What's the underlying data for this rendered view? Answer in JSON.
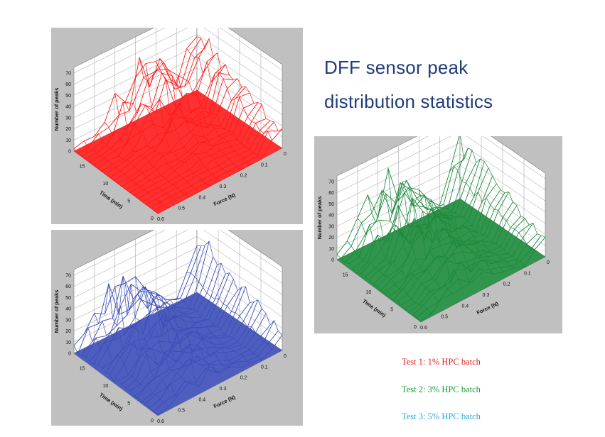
{
  "title": {
    "line1": "DFF sensor  peak",
    "line2": "distribution statistics",
    "color": "#1f3d7a"
  },
  "legend": [
    {
      "text": "Test 1: 1% HPC batch",
      "color": "#e32323"
    },
    {
      "text": "Test 2: 3% HPC batch",
      "color": "#1e9a3e"
    },
    {
      "text": "Test 3: 5% HPC batch",
      "color": "#2aa7d8"
    }
  ],
  "chart_data": [
    {
      "type": "surface",
      "series": [
        {
          "color": "#ff1a1a"
        }
      ],
      "axes": {
        "z": {
          "label": "Number of peaks",
          "ticks": [
            "0",
            "10",
            "20",
            "30",
            "40",
            "50",
            "60",
            "70"
          ],
          "range": [
            0,
            75
          ]
        },
        "time": {
          "label": "Time (min)",
          "ticks": [
            "15",
            "10",
            "5",
            "0"
          ],
          "range": [
            0,
            18
          ]
        },
        "force": {
          "label": "Force (N)",
          "ticks": [
            "0.6",
            "0.5",
            "0.4",
            "0.3",
            "0.2",
            "0.1",
            "0"
          ],
          "range": [
            0,
            0.6
          ]
        }
      },
      "description_values": {
        "force_bins": [
          0.6,
          0.55,
          0.5,
          0.45,
          0.4,
          0.35,
          0.3,
          0.25,
          0.2,
          0.15,
          0.1,
          0.05,
          0.0
        ],
        "peak_profile_max": [
          2,
          4,
          10,
          18,
          30,
          45,
          58,
          60,
          50,
          40,
          30,
          55,
          60
        ],
        "time_extent": 18
      }
    },
    {
      "type": "surface",
      "series": [
        {
          "color": "#3b4db8"
        }
      ],
      "axes": {
        "z": {
          "label": "Number of peaks",
          "ticks": [
            "0",
            "10",
            "20",
            "30",
            "40",
            "50",
            "60",
            "70"
          ],
          "range": [
            0,
            75
          ]
        },
        "time": {
          "label": "Time (min)",
          "ticks": [
            "15",
            "10",
            "5",
            "0"
          ],
          "range": [
            0,
            18
          ]
        },
        "force": {
          "label": "Force (N)",
          "ticks": [
            "0.6",
            "0.5",
            "0.4",
            "0.3",
            "0.2",
            "0.1",
            "0"
          ],
          "range": [
            0,
            0.6
          ]
        }
      },
      "description_values": {
        "force_bins": [
          0.6,
          0.55,
          0.5,
          0.45,
          0.4,
          0.35,
          0.3,
          0.25,
          0.2,
          0.15,
          0.1,
          0.05,
          0.0
        ],
        "peak_profile_max": [
          6,
          20,
          38,
          48,
          55,
          50,
          40,
          30,
          18,
          10,
          6,
          30,
          62
        ],
        "time_extent": 18
      }
    },
    {
      "type": "surface",
      "series": [
        {
          "color": "#1b8a3a"
        }
      ],
      "axes": {
        "z": {
          "label": "Number of peaks",
          "ticks": [
            "0",
            "10",
            "20",
            "30",
            "40",
            "50",
            "60",
            "70"
          ],
          "range": [
            0,
            75
          ]
        },
        "time": {
          "label": "Time (min)",
          "ticks": [
            "15",
            "10",
            "5",
            "0"
          ],
          "range": [
            0,
            18
          ]
        },
        "force": {
          "label": "Force (N)",
          "ticks": [
            "0.6",
            "0.5",
            "0.4",
            "0.3",
            "0.2",
            "0.1",
            "0"
          ],
          "range": [
            0,
            0.6
          ]
        }
      },
      "description_values": {
        "force_bins": [
          0.6,
          0.55,
          0.5,
          0.45,
          0.4,
          0.35,
          0.3,
          0.25,
          0.2,
          0.15,
          0.1,
          0.05,
          0.0
        ],
        "peak_profile_max": [
          4,
          12,
          28,
          42,
          50,
          52,
          46,
          36,
          24,
          14,
          8,
          40,
          62
        ],
        "time_extent": 18
      }
    }
  ]
}
